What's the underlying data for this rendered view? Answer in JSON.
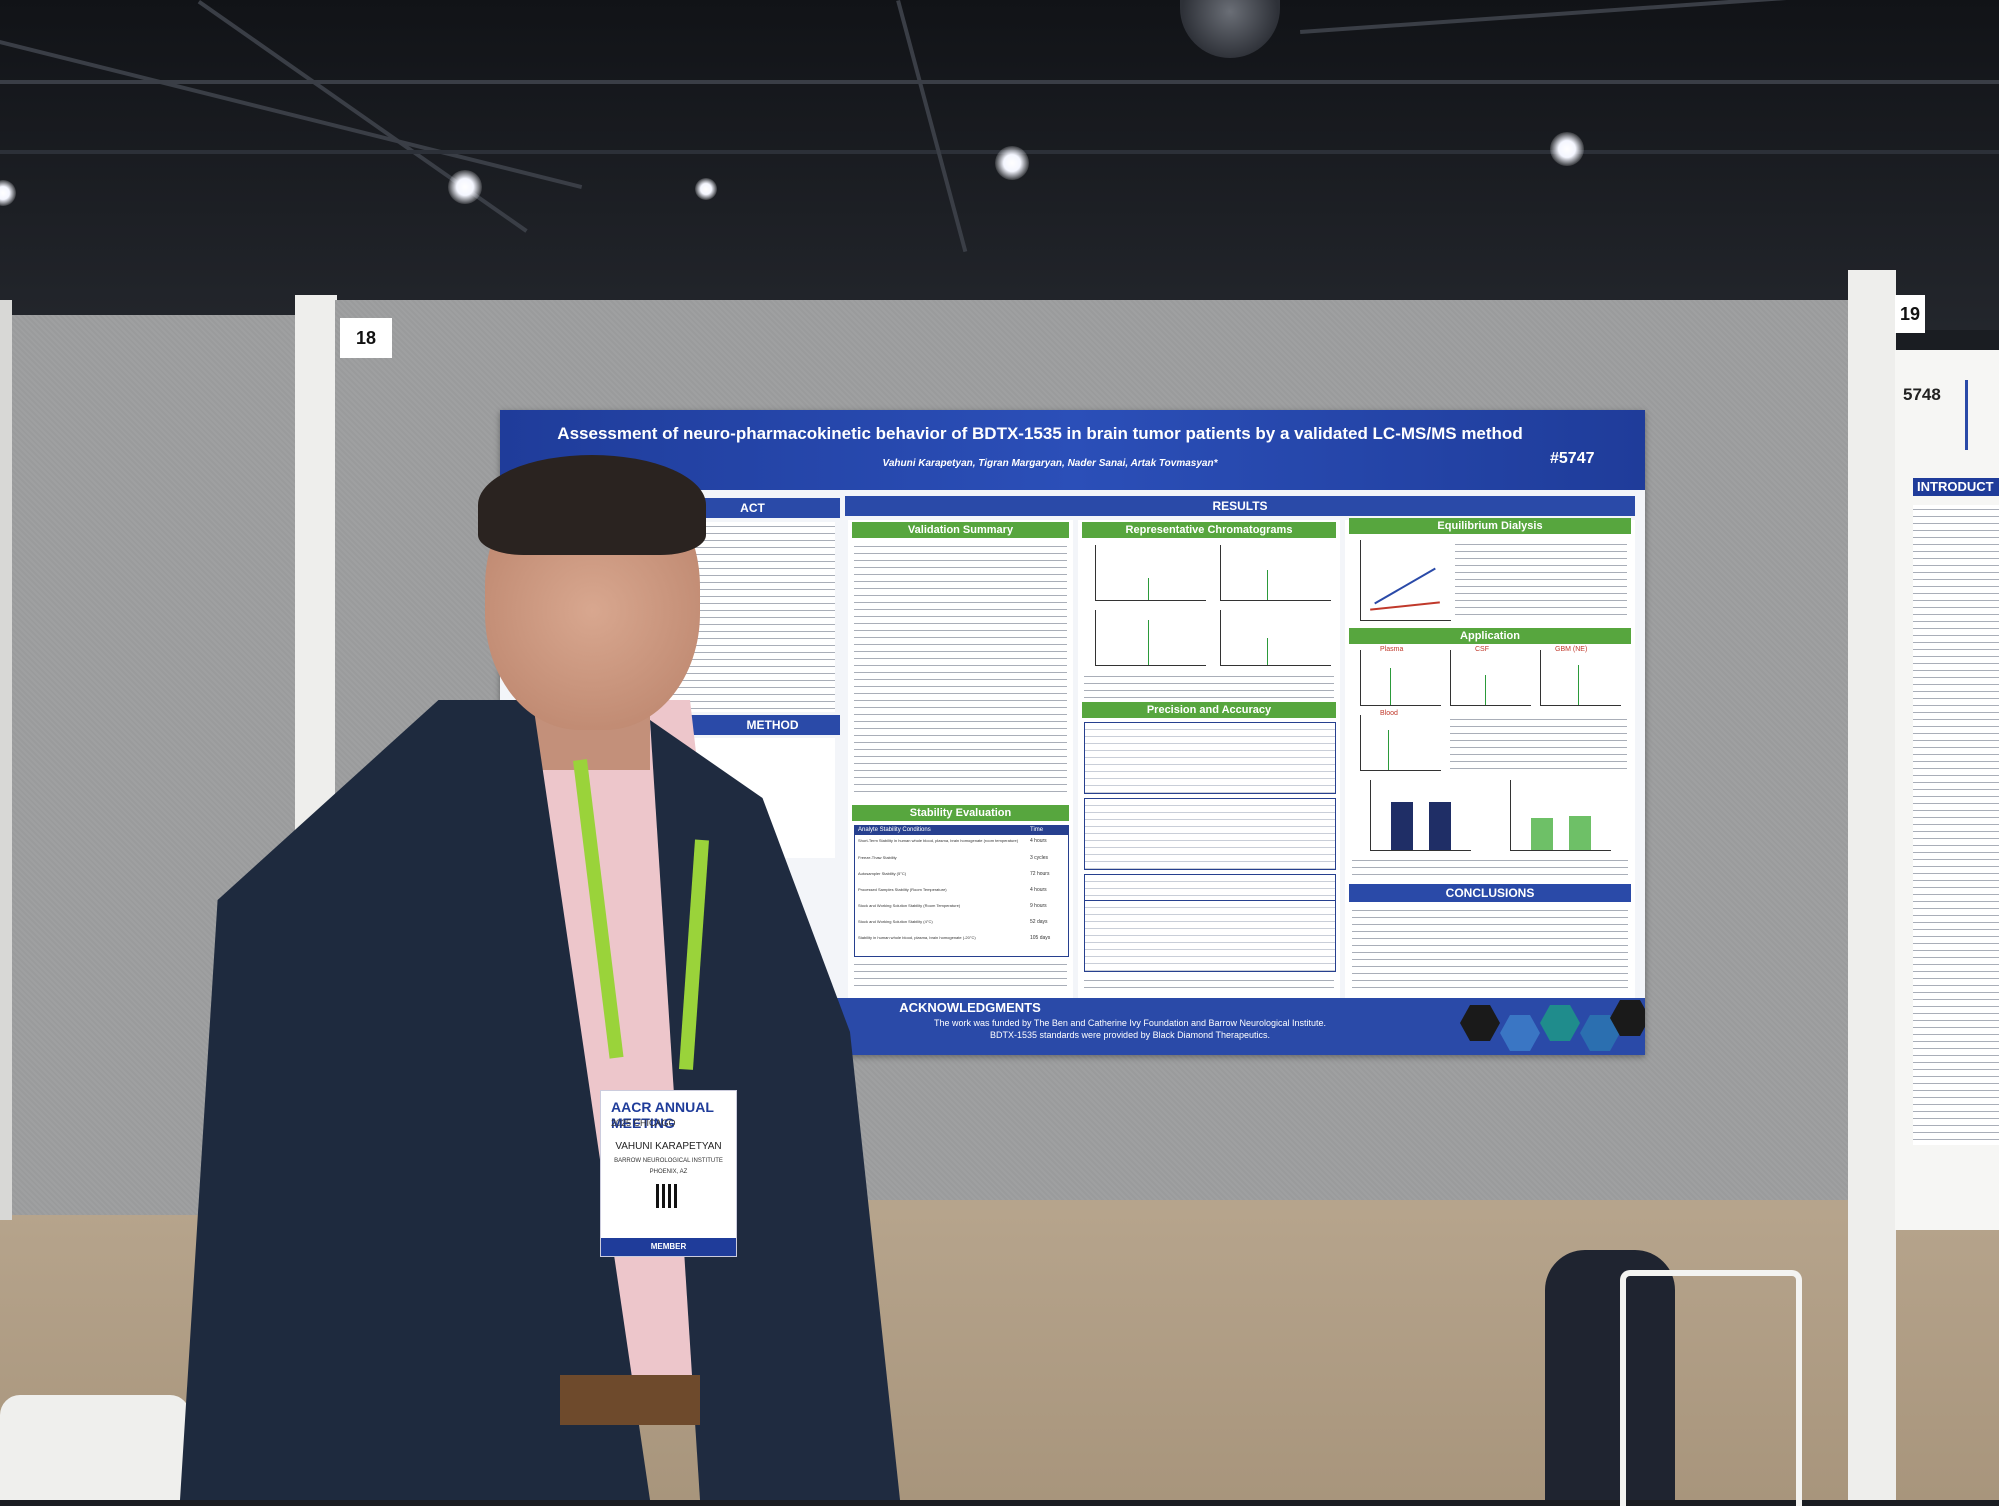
{
  "scene": {
    "stand_number_left": "18",
    "stand_number_right": "19"
  },
  "poster": {
    "title": "Assessment of neuro-pharmacokinetic behavior of BDTX-1535 in brain tumor patients by a validated LC-MS/MS method",
    "number": "#5747",
    "authors": "Vahuni Karapetyan, Tigran Margaryan, Nader Sanai, Artak Tovmasyan*",
    "sections": {
      "abstract": "ACT",
      "method": "METHOD",
      "results": "RESULTS",
      "validation_summary": "Validation Summary",
      "representative_chromatograms": "Representative Chromatograms",
      "equilibrium_dialysis": "Equilibrium Dialysis",
      "application": "Application",
      "precision_accuracy": "Precision and Accuracy",
      "stability_evaluation": "Stability Evaluation",
      "conclusions": "CONCLUSIONS",
      "acknowledgments": "ACKNOWLEDGMENTS"
    },
    "stability_table": {
      "header": [
        "Analyte Stability Conditions",
        "Time"
      ],
      "rows": [
        [
          "Short-Term Stability in human whole blood, plasma, brain homogenate (room temperature)",
          "4 hours"
        ],
        [
          "Freeze-Thaw Stability",
          "3 cycles"
        ],
        [
          "Autosampler Stability (5°C)",
          "72 hours"
        ],
        [
          "Processed Samples Stability (Room Temperature)",
          "4 hours"
        ],
        [
          "Stock and Working Solution Stability (Room Temperature)",
          "9 hours"
        ],
        [
          "Stock and Working Solution Stability (4°C)",
          "52 days"
        ],
        [
          "Stability in human whole blood, plasma, brain homogenate (-20°C)",
          "105 days"
        ]
      ]
    },
    "application_labels": [
      "Plasma",
      "CSF",
      "GBM (NE)",
      "Blood"
    ],
    "ack_lines": [
      "The work was funded by The Ben and Catherine Ivy Foundation and Barrow Neurological Institute.",
      "BDTX-1535 standards were provided by Black Diamond Therapeutics."
    ]
  },
  "right_poster": {
    "number": "5748",
    "section": "INTRODUCT"
  },
  "badge": {
    "logo": "AACR ANNUAL MEETING",
    "event": "2025 CHICAGO",
    "name": "VAHUNI KARAPETYAN",
    "institution": "BARROW NEUROLOGICAL INSTITUTE",
    "city": "PHOENIX, AZ",
    "type": "MEMBER"
  },
  "colors": {
    "poster_blue": "#2a4aa8",
    "section_green": "#57a63e",
    "lanyard_green": "#9ad33a",
    "board_gray": "#9a9b9c"
  }
}
